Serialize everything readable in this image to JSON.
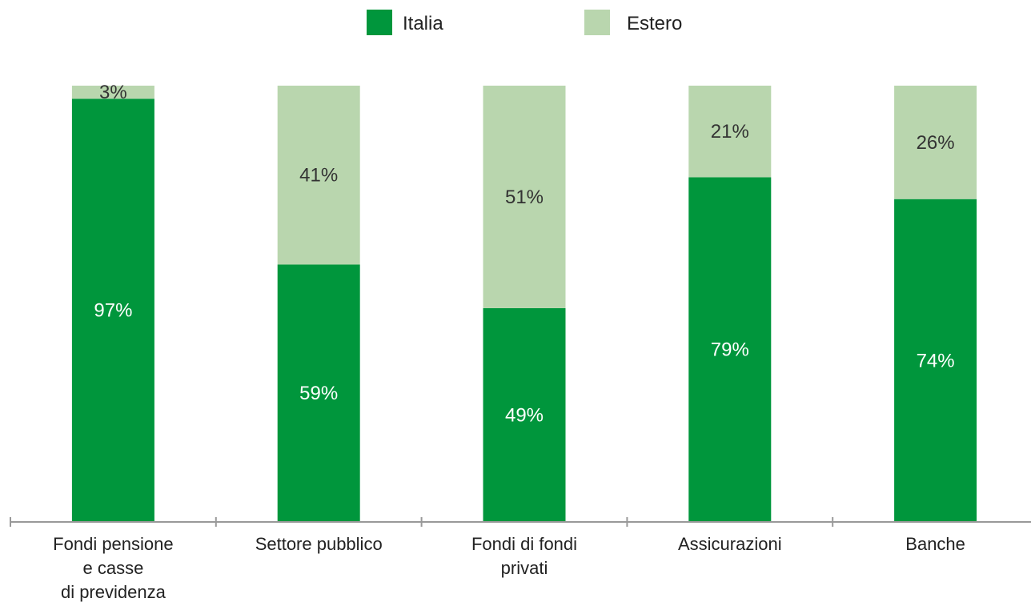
{
  "colors": {
    "italia": "#00963c",
    "estero": "#b9d6ae",
    "label_on_dark": "#ffffff",
    "label_on_light": "#333333",
    "axis": "#999999"
  },
  "chart_data": {
    "type": "bar",
    "stacked": true,
    "categories": [
      [
        "Fondi pensione",
        "e casse",
        "di previdenza"
      ],
      [
        "Settore pubblico"
      ],
      [
        "Fondi di fondi",
        "privati"
      ],
      [
        "Assicurazioni"
      ],
      [
        "Banche"
      ]
    ],
    "series": [
      {
        "name": "Italia",
        "values": [
          97,
          59,
          49,
          79,
          74
        ],
        "labels": [
          "97%",
          "59%",
          "49%",
          "79%",
          "74%"
        ]
      },
      {
        "name": "Estero",
        "values": [
          3,
          41,
          51,
          21,
          26
        ],
        "labels": [
          "3%",
          "41%",
          "51%",
          "21%",
          "26%"
        ]
      }
    ],
    "ylim": [
      0,
      100
    ],
    "legend_position": "top-center",
    "grid": false
  }
}
